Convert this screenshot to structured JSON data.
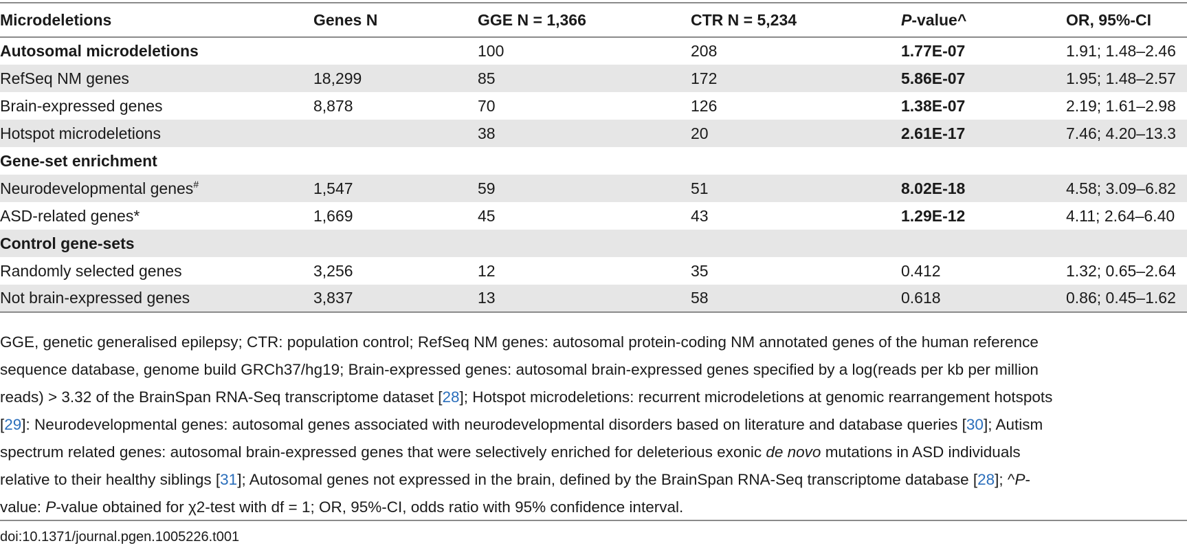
{
  "table": {
    "headers": [
      "Microdeletions",
      "Genes N",
      "GGE N = 1,366",
      "CTR N = 5,234",
      "P-value^",
      "OR, 95%-CI"
    ],
    "header_pvalue_italic": "P",
    "header_pvalue_rest": "-value^",
    "rows": [
      {
        "label": "Autosomal microdeletions",
        "genes": "",
        "gge": "100",
        "ctr": "208",
        "p": "1.77E-07",
        "or": "1.91; 1.48–2.46"
      },
      {
        "label": "RefSeq NM genes",
        "genes": "18,299",
        "gge": "85",
        "ctr": "172",
        "p": "5.86E-07",
        "or": "1.95; 1.48–2.57"
      },
      {
        "label": "Brain-expressed genes",
        "genes": "8,878",
        "gge": "70",
        "ctr": "126",
        "p": "1.38E-07",
        "or": "2.19; 1.61–2.98"
      },
      {
        "label": "Hotspot microdeletions",
        "genes": "",
        "gge": "38",
        "ctr": "20",
        "p": "2.61E-17",
        "or": "7.46; 4.20–13.3"
      },
      {
        "label": "Gene-set enrichment"
      },
      {
        "label": "Neurodevelopmental genes",
        "sup": "#",
        "genes": "1,547",
        "gge": "59",
        "ctr": "51",
        "p": "8.02E-18",
        "or": "4.58; 3.09–6.82"
      },
      {
        "label": "ASD-related genes*",
        "genes": "1,669",
        "gge": "45",
        "ctr": "43",
        "p": "1.29E-12",
        "or": "4.11; 2.64–6.40"
      },
      {
        "label": "Control gene-sets"
      },
      {
        "label": "Randomly selected genes",
        "genes": "3,256",
        "gge": "12",
        "ctr": "35",
        "p": "0.412",
        "or": "1.32; 0.65–2.64"
      },
      {
        "label": "Not brain-expressed genes",
        "genes": "3,837",
        "gge": "13",
        "ctr": "58",
        "p": "0.618",
        "or": "0.86; 0.45–1.62"
      }
    ]
  },
  "footnote": {
    "line1": "GGE, genetic generalised epilepsy; CTR: population control; RefSeq NM genes: autosomal protein-coding NM annotated genes of the human reference",
    "line2": "sequence database, genome build GRCh37/hg19; Brain-expressed genes: autosomal brain-expressed genes specified by a log(reads per kb per million",
    "line3a": "reads) > 3.32 of the BrainSpan RNA-Seq transcriptome dataset [",
    "ref28": "28",
    "line3b": "]; Hotspot microdeletions: recurrent microdeletions at genomic rearrangement hotspots",
    "line4a": "[",
    "ref29": "29",
    "line4b": "]: Neurodevelopmental genes: autosomal genes associated with neurodevelopmental disorders based on literature and database queries [",
    "ref30": "30",
    "line4c": "]; Autism",
    "line5a": "spectrum related genes: autosomal brain-expressed genes that were selectively enriched for deleterious exonic ",
    "line5italic": "de novo",
    "line5b": " mutations in ASD individuals",
    "line6a": "relative to their healthy siblings [",
    "ref31": "31",
    "line6b": "]; Autosomal genes not expressed in the brain, defined by the BrainSpan RNA-Seq transcriptome database [",
    "ref28b": "28",
    "line6c": "]; ^",
    "line6italic": "P",
    "line6d": "-",
    "line7a": "value: ",
    "line7italic": "P",
    "line7b": "-value obtained for ",
    "chi": "χ",
    "line7c": "2-test with df = 1; OR, 95%-CI, odds ratio with 95% confidence interval."
  },
  "doi": "doi:10.1371/journal.pgen.1005226.t001"
}
